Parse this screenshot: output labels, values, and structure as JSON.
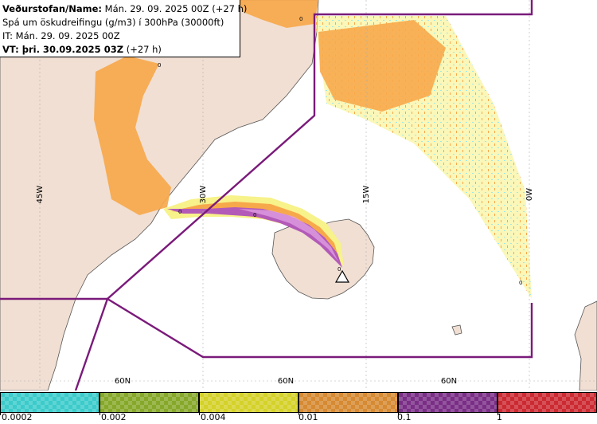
{
  "header": {
    "line1_bold": "Veðurstofan/Name:",
    "line1_rest": " Mán. 29. 09. 2025 00Z (+27 h)",
    "line2": "Spá um öskudreifingu (g/m3) í 300hPa (30000ft)",
    "line3": "IT: Mán. 29. 09. 2025 00Z",
    "line4_bold": "VT: þri. 30.09.2025 03Z",
    "line4_rest": " (+27 h)"
  },
  "map": {
    "longitude_labels": [
      "45W",
      "30W",
      "15W",
      "0W"
    ],
    "latitude_labels": [
      "60N",
      "60N",
      "60N"
    ],
    "contour_labels": [
      "0",
      "0",
      "0",
      "0",
      "0",
      "0"
    ],
    "colors": {
      "ocean": "#ffffff",
      "land": "#f1dfd3",
      "ash_orange": "#f7a84b",
      "ash_yellow": "#f7f28a",
      "ash_cyan": "#9ee9e8",
      "ash_purple": "#b35ab8",
      "boundary": "#7a1a7a"
    },
    "volcano_symbol": "volcano-triangle-icon"
  },
  "legend": {
    "ticks": [
      "0.0002",
      "0.002",
      "0.004",
      "0.01",
      "0.1",
      "1"
    ],
    "swatch_colors": [
      "#3ccbcb",
      "#86a82a",
      "#d4d12a",
      "#d68a32",
      "#7a2e86",
      "#cc2a32"
    ]
  }
}
